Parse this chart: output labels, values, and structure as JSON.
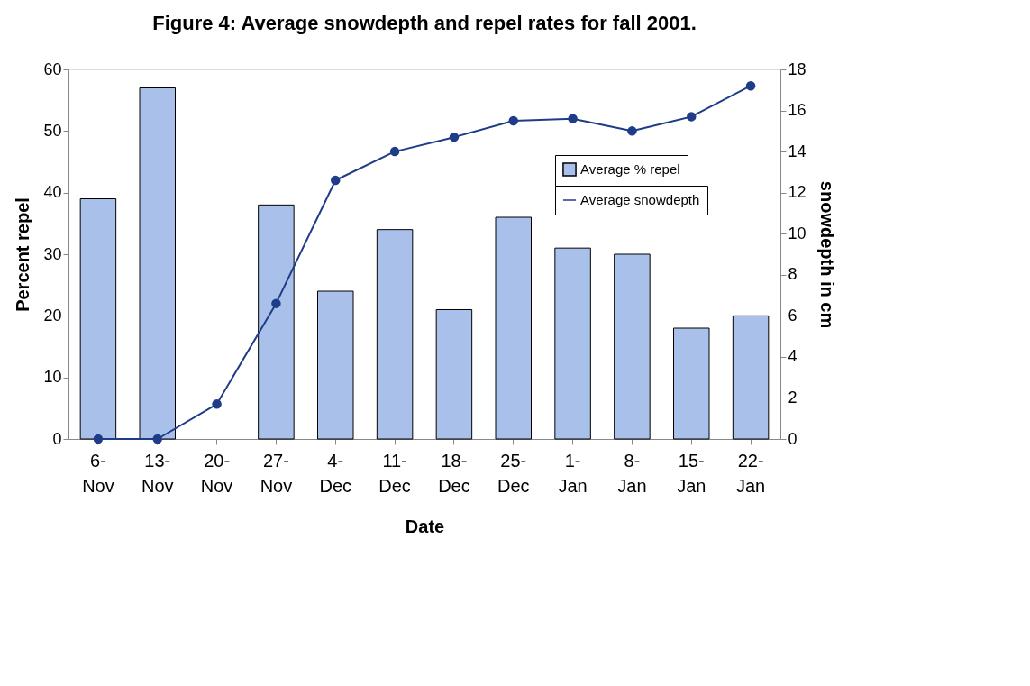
{
  "chart_data": {
    "type": "bar",
    "title": "Figure 4:  Average snowdepth and repel rates for fall 2001.",
    "xlabel": "Date",
    "ylabel": "Percent repel",
    "y2label": "snowdepth in cm",
    "categories": [
      "6-Nov",
      "13-Nov",
      "20-Nov",
      "27-Nov",
      "4-Dec",
      "11-Dec",
      "18-Dec",
      "25-Dec",
      "1-Jan",
      "8-Jan",
      "15-Jan",
      "22-Jan"
    ],
    "series": [
      {
        "name": "Average % repel",
        "color": "#a9c1ea",
        "values": [
          39,
          57,
          null,
          38,
          24,
          34,
          21,
          36,
          31,
          30,
          18,
          20
        ]
      },
      {
        "name": "Average snowdepth",
        "type": "line",
        "axis": "y2",
        "color": "#1f3c88",
        "marker": "circle",
        "values": [
          0,
          0,
          1.7,
          6.6,
          12.6,
          14.0,
          14.7,
          15.5,
          15.6,
          15.0,
          15.7,
          17.2
        ]
      }
    ],
    "ylim": [
      0,
      60
    ],
    "yticks": [
      0,
      10,
      20,
      30,
      40,
      50,
      60
    ],
    "y2lim": [
      0,
      18
    ],
    "y2ticks": [
      0,
      2,
      4,
      6,
      8,
      10,
      12,
      14,
      16,
      18
    ],
    "grid": false,
    "legend": "top right"
  }
}
